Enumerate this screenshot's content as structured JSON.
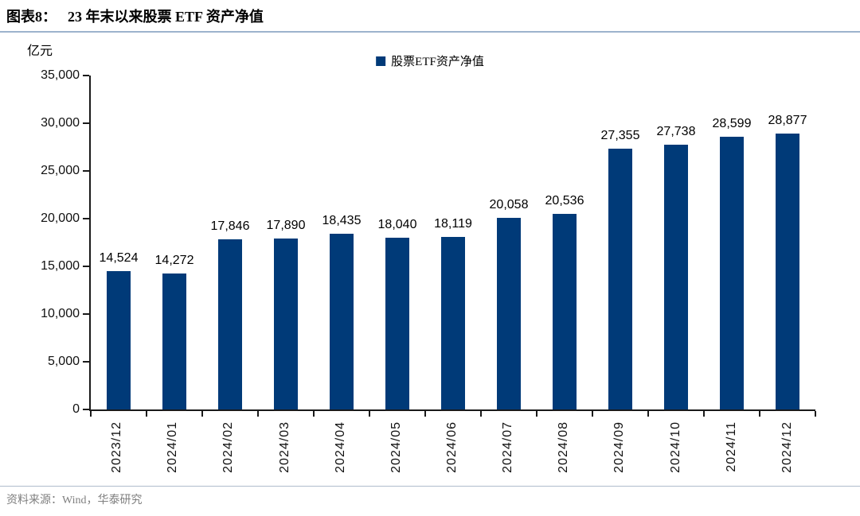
{
  "header": {
    "prefix": "图表8：",
    "title": "23 年末以来股票 ETF 资产净值"
  },
  "source": {
    "text": "资料来源：Wind，华泰研究"
  },
  "chart_data": {
    "type": "bar",
    "title": "23 年末以来股票 ETF 资产净值",
    "unit_label": "亿元",
    "legend": {
      "label": "股票ETF资产净值",
      "position": "top-center"
    },
    "bar_color": "#003a78",
    "axis_color": "#1a1a1a",
    "grid": false,
    "ylim": [
      0,
      35000
    ],
    "y_ticks": [
      {
        "value": 0,
        "label": "0"
      },
      {
        "value": 5000,
        "label": "5,000"
      },
      {
        "value": 10000,
        "label": "10,000"
      },
      {
        "value": 15000,
        "label": "15,000"
      },
      {
        "value": 20000,
        "label": "20,000"
      },
      {
        "value": 25000,
        "label": "25,000"
      },
      {
        "value": 30000,
        "label": "30,000"
      },
      {
        "value": 35000,
        "label": "35,000"
      }
    ],
    "categories": [
      "2023/12",
      "2024/01",
      "2024/02",
      "2024/03",
      "2024/04",
      "2024/05",
      "2024/06",
      "2024/07",
      "2024/08",
      "2024/09",
      "2024/10",
      "2024/11",
      "2024/12"
    ],
    "values": [
      14524,
      14272,
      17846,
      17890,
      18435,
      18040,
      18119,
      20058,
      20536,
      27355,
      27738,
      28599,
      28877
    ],
    "value_labels": [
      "14,524",
      "14,272",
      "17,846",
      "17,890",
      "18,435",
      "18,040",
      "18,119",
      "20,058",
      "20,536",
      "27,355",
      "27,738",
      "28,599",
      "28,877"
    ]
  }
}
